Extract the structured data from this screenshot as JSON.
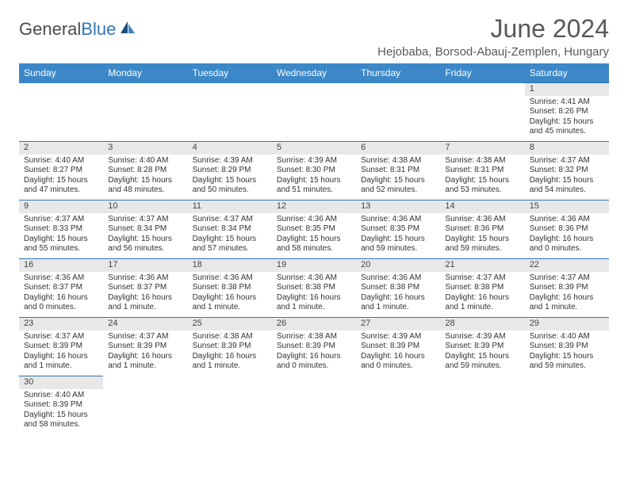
{
  "logo": {
    "text1": "General",
    "text2": "Blue"
  },
  "title": "June 2024",
  "location": "Hejobaba, Borsod-Abauj-Zemplen, Hungary",
  "colors": {
    "header_bg": "#3b87c8",
    "header_text": "#ffffff",
    "daynum_bg": "#e8e8e8",
    "border": "#2f75b5",
    "body_text": "#333333",
    "title_text": "#595959"
  },
  "fonts": {
    "title_pt": 32,
    "location_pt": 15,
    "header_pt": 12,
    "daynum_pt": 11,
    "cell_pt": 10
  },
  "days_of_week": [
    "Sunday",
    "Monday",
    "Tuesday",
    "Wednesday",
    "Thursday",
    "Friday",
    "Saturday"
  ],
  "weeks": [
    [
      null,
      null,
      null,
      null,
      null,
      null,
      {
        "n": "1",
        "sr": "Sunrise: 4:41 AM",
        "ss": "Sunset: 8:26 PM",
        "dl": "Daylight: 15 hours and 45 minutes."
      }
    ],
    [
      {
        "n": "2",
        "sr": "Sunrise: 4:40 AM",
        "ss": "Sunset: 8:27 PM",
        "dl": "Daylight: 15 hours and 47 minutes."
      },
      {
        "n": "3",
        "sr": "Sunrise: 4:40 AM",
        "ss": "Sunset: 8:28 PM",
        "dl": "Daylight: 15 hours and 48 minutes."
      },
      {
        "n": "4",
        "sr": "Sunrise: 4:39 AM",
        "ss": "Sunset: 8:29 PM",
        "dl": "Daylight: 15 hours and 50 minutes."
      },
      {
        "n": "5",
        "sr": "Sunrise: 4:39 AM",
        "ss": "Sunset: 8:30 PM",
        "dl": "Daylight: 15 hours and 51 minutes."
      },
      {
        "n": "6",
        "sr": "Sunrise: 4:38 AM",
        "ss": "Sunset: 8:31 PM",
        "dl": "Daylight: 15 hours and 52 minutes."
      },
      {
        "n": "7",
        "sr": "Sunrise: 4:38 AM",
        "ss": "Sunset: 8:31 PM",
        "dl": "Daylight: 15 hours and 53 minutes."
      },
      {
        "n": "8",
        "sr": "Sunrise: 4:37 AM",
        "ss": "Sunset: 8:32 PM",
        "dl": "Daylight: 15 hours and 54 minutes."
      }
    ],
    [
      {
        "n": "9",
        "sr": "Sunrise: 4:37 AM",
        "ss": "Sunset: 8:33 PM",
        "dl": "Daylight: 15 hours and 55 minutes."
      },
      {
        "n": "10",
        "sr": "Sunrise: 4:37 AM",
        "ss": "Sunset: 8:34 PM",
        "dl": "Daylight: 15 hours and 56 minutes."
      },
      {
        "n": "11",
        "sr": "Sunrise: 4:37 AM",
        "ss": "Sunset: 8:34 PM",
        "dl": "Daylight: 15 hours and 57 minutes."
      },
      {
        "n": "12",
        "sr": "Sunrise: 4:36 AM",
        "ss": "Sunset: 8:35 PM",
        "dl": "Daylight: 15 hours and 58 minutes."
      },
      {
        "n": "13",
        "sr": "Sunrise: 4:36 AM",
        "ss": "Sunset: 8:35 PM",
        "dl": "Daylight: 15 hours and 59 minutes."
      },
      {
        "n": "14",
        "sr": "Sunrise: 4:36 AM",
        "ss": "Sunset: 8:36 PM",
        "dl": "Daylight: 15 hours and 59 minutes."
      },
      {
        "n": "15",
        "sr": "Sunrise: 4:36 AM",
        "ss": "Sunset: 8:36 PM",
        "dl": "Daylight: 16 hours and 0 minutes."
      }
    ],
    [
      {
        "n": "16",
        "sr": "Sunrise: 4:36 AM",
        "ss": "Sunset: 8:37 PM",
        "dl": "Daylight: 16 hours and 0 minutes."
      },
      {
        "n": "17",
        "sr": "Sunrise: 4:36 AM",
        "ss": "Sunset: 8:37 PM",
        "dl": "Daylight: 16 hours and 1 minute."
      },
      {
        "n": "18",
        "sr": "Sunrise: 4:36 AM",
        "ss": "Sunset: 8:38 PM",
        "dl": "Daylight: 16 hours and 1 minute."
      },
      {
        "n": "19",
        "sr": "Sunrise: 4:36 AM",
        "ss": "Sunset: 8:38 PM",
        "dl": "Daylight: 16 hours and 1 minute."
      },
      {
        "n": "20",
        "sr": "Sunrise: 4:36 AM",
        "ss": "Sunset: 8:38 PM",
        "dl": "Daylight: 16 hours and 1 minute."
      },
      {
        "n": "21",
        "sr": "Sunrise: 4:37 AM",
        "ss": "Sunset: 8:38 PM",
        "dl": "Daylight: 16 hours and 1 minute."
      },
      {
        "n": "22",
        "sr": "Sunrise: 4:37 AM",
        "ss": "Sunset: 8:39 PM",
        "dl": "Daylight: 16 hours and 1 minute."
      }
    ],
    [
      {
        "n": "23",
        "sr": "Sunrise: 4:37 AM",
        "ss": "Sunset: 8:39 PM",
        "dl": "Daylight: 16 hours and 1 minute."
      },
      {
        "n": "24",
        "sr": "Sunrise: 4:37 AM",
        "ss": "Sunset: 8:39 PM",
        "dl": "Daylight: 16 hours and 1 minute."
      },
      {
        "n": "25",
        "sr": "Sunrise: 4:38 AM",
        "ss": "Sunset: 8:39 PM",
        "dl": "Daylight: 16 hours and 1 minute."
      },
      {
        "n": "26",
        "sr": "Sunrise: 4:38 AM",
        "ss": "Sunset: 8:39 PM",
        "dl": "Daylight: 16 hours and 0 minutes."
      },
      {
        "n": "27",
        "sr": "Sunrise: 4:39 AM",
        "ss": "Sunset: 8:39 PM",
        "dl": "Daylight: 16 hours and 0 minutes."
      },
      {
        "n": "28",
        "sr": "Sunrise: 4:39 AM",
        "ss": "Sunset: 8:39 PM",
        "dl": "Daylight: 15 hours and 59 minutes."
      },
      {
        "n": "29",
        "sr": "Sunrise: 4:40 AM",
        "ss": "Sunset: 8:39 PM",
        "dl": "Daylight: 15 hours and 59 minutes."
      }
    ],
    [
      {
        "n": "30",
        "sr": "Sunrise: 4:40 AM",
        "ss": "Sunset: 8:39 PM",
        "dl": "Daylight: 15 hours and 58 minutes."
      },
      null,
      null,
      null,
      null,
      null,
      null
    ]
  ]
}
